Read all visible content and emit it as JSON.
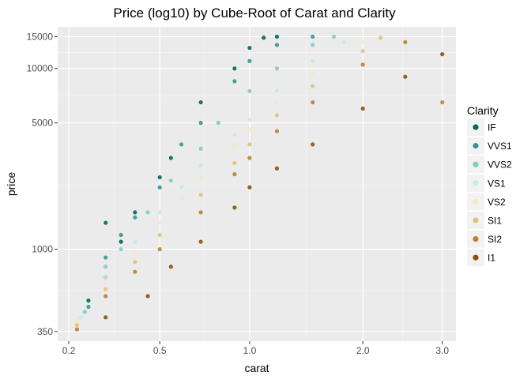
{
  "chart_data": {
    "type": "scatter",
    "title": "Price (log10) by Cube-Root of Carat and Clarity",
    "xlabel": "carat",
    "ylabel": "price",
    "x_scale": "cube-root",
    "y_scale": "log10",
    "xlim": [
      0.2,
      3.0
    ],
    "ylim": [
      350,
      15000
    ],
    "x_ticks": [
      0.2,
      0.5,
      1.0,
      2.0,
      3.0
    ],
    "x_tick_labels": [
      "0.2",
      "0.5",
      "1.0",
      "2.0",
      "3.0"
    ],
    "y_ticks": [
      350,
      1000,
      5000,
      10000,
      15000
    ],
    "y_tick_labels": [
      "350",
      "1000",
      "5000",
      "10000",
      "15000"
    ],
    "grid": true,
    "background": "#EBEBEB",
    "legend": {
      "title": "Clarity",
      "placement": "right"
    },
    "series": [
      {
        "name": "IF",
        "color": "#01665E",
        "values": [
          [
            0.25,
            520
          ],
          [
            0.3,
            700
          ],
          [
            0.3,
            1400
          ],
          [
            0.35,
            1100
          ],
          [
            0.4,
            1600
          ],
          [
            0.5,
            2500
          ],
          [
            0.55,
            3200
          ],
          [
            0.7,
            6500
          ],
          [
            0.9,
            10000
          ],
          [
            1.0,
            13000
          ],
          [
            1.1,
            14800
          ],
          [
            1.2,
            15000
          ]
        ]
      },
      {
        "name": "VVS1",
        "color": "#35978F",
        "values": [
          [
            0.25,
            480
          ],
          [
            0.3,
            900
          ],
          [
            0.35,
            1200
          ],
          [
            0.4,
            1500
          ],
          [
            0.5,
            2200
          ],
          [
            0.6,
            3800
          ],
          [
            0.7,
            5000
          ],
          [
            0.9,
            8500
          ],
          [
            1.0,
            11000
          ],
          [
            1.2,
            13500
          ],
          [
            1.5,
            15000
          ]
        ]
      },
      {
        "name": "VVS2",
        "color": "#80CDC1",
        "values": [
          [
            0.24,
            450
          ],
          [
            0.3,
            800
          ],
          [
            0.35,
            1000
          ],
          [
            0.45,
            1600
          ],
          [
            0.55,
            2400
          ],
          [
            0.7,
            3600
          ],
          [
            0.8,
            5000
          ],
          [
            1.0,
            7500
          ],
          [
            1.2,
            10000
          ],
          [
            1.5,
            13500
          ],
          [
            1.7,
            15000
          ]
        ]
      },
      {
        "name": "VS1",
        "color": "#C7EAE5",
        "values": [
          [
            0.23,
            420
          ],
          [
            0.3,
            700
          ],
          [
            0.4,
            1100
          ],
          [
            0.5,
            1600
          ],
          [
            0.6,
            2200
          ],
          [
            0.7,
            2900
          ],
          [
            0.9,
            4300
          ],
          [
            1.0,
            5200
          ],
          [
            1.2,
            7500
          ],
          [
            1.5,
            11000
          ],
          [
            1.8,
            14000
          ]
        ]
      },
      {
        "name": "VS2",
        "color": "#F6E8C3",
        "values": [
          [
            0.22,
            400
          ],
          [
            0.3,
            650
          ],
          [
            0.4,
            950
          ],
          [
            0.5,
            1400
          ],
          [
            0.6,
            1900
          ],
          [
            0.7,
            2500
          ],
          [
            0.9,
            3700
          ],
          [
            1.0,
            4600
          ],
          [
            1.2,
            6500
          ],
          [
            1.5,
            9500
          ],
          [
            2.0,
            14000
          ]
        ]
      },
      {
        "name": "SI1",
        "color": "#DFC27D",
        "values": [
          [
            0.22,
            380
          ],
          [
            0.3,
            600
          ],
          [
            0.4,
            850
          ],
          [
            0.5,
            1200
          ],
          [
            0.7,
            2000
          ],
          [
            0.9,
            3000
          ],
          [
            1.0,
            3800
          ],
          [
            1.2,
            5500
          ],
          [
            1.5,
            8000
          ],
          [
            2.0,
            12500
          ],
          [
            2.2,
            14800
          ]
        ]
      },
      {
        "name": "SI2",
        "color": "#BF812D",
        "values": [
          [
            0.22,
            360
          ],
          [
            0.3,
            550
          ],
          [
            0.4,
            750
          ],
          [
            0.5,
            1000
          ],
          [
            0.7,
            1600
          ],
          [
            0.9,
            2600
          ],
          [
            1.0,
            3200
          ],
          [
            1.2,
            4500
          ],
          [
            1.5,
            6500
          ],
          [
            2.0,
            10500
          ],
          [
            2.5,
            14000
          ],
          [
            3.0,
            6500
          ]
        ]
      },
      {
        "name": "I1",
        "color": "#8C510A",
        "values": [
          [
            0.3,
            420
          ],
          [
            0.45,
            550
          ],
          [
            0.55,
            800
          ],
          [
            0.7,
            1100
          ],
          [
            0.9,
            1700
          ],
          [
            1.0,
            2200
          ],
          [
            1.2,
            2800
          ],
          [
            1.5,
            3800
          ],
          [
            2.0,
            6000
          ],
          [
            2.5,
            9000
          ],
          [
            3.0,
            12000
          ]
        ]
      }
    ]
  }
}
